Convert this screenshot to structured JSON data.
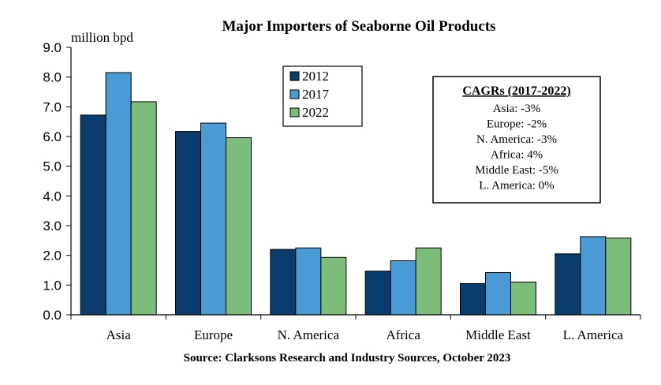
{
  "chart_data": {
    "type": "bar",
    "title": "Major Importers of Seaborne Oil Products",
    "ylabel": "million bpd",
    "xlabel": "",
    "source": "Source: Clarksons Research  and Industry Sources, October 2023",
    "categories": [
      "Asia",
      "Europe",
      "N. America",
      "Africa",
      "Middle East",
      "L. America"
    ],
    "ylim": [
      0,
      9
    ],
    "yticks": [
      "0.0",
      "1.0",
      "2.0",
      "3.0",
      "4.0",
      "5.0",
      "6.0",
      "7.0",
      "8.0",
      "9.0"
    ],
    "series": [
      {
        "name": "2012",
        "color": "#0b3c6e",
        "values": [
          6.72,
          6.17,
          2.2,
          1.47,
          1.05,
          2.05
        ]
      },
      {
        "name": "2017",
        "color": "#4a9ad6",
        "values": [
          8.15,
          6.45,
          2.25,
          1.82,
          1.42,
          2.63
        ]
      },
      {
        "name": "2022",
        "color": "#7dbd7c",
        "values": [
          7.17,
          5.96,
          1.93,
          2.25,
          1.1,
          2.58
        ]
      }
    ],
    "legend_position": "top-center",
    "annotation": {
      "title": "CAGRs (2017-2022)",
      "lines": [
        "Asia: -3%",
        "Europe: -2%",
        "N. America: -3%",
        "Africa: 4%",
        "Middle East: -5%",
        "L. America: 0%"
      ]
    }
  }
}
